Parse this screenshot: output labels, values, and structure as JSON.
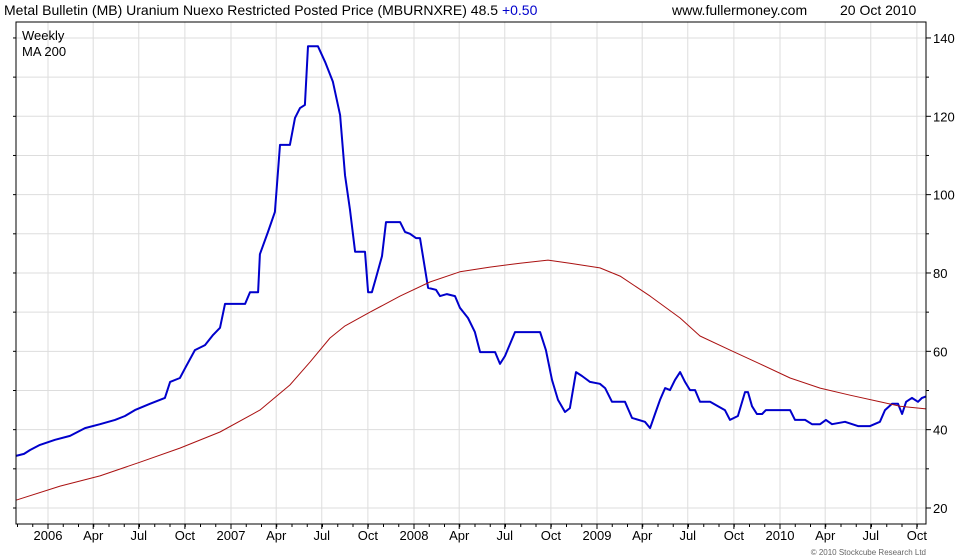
{
  "header": {
    "title": "Metal Bulletin (MB) Uranium Nuexo Restricted Posted Price (MBURNXRE) 48.5",
    "change": "+0.50",
    "site": "www.fullermoney.com",
    "date": "20 Oct 2010"
  },
  "footer": {
    "copyright": "© 2010 Stockcube Research Ltd"
  },
  "colors": {
    "weekly": "#0000cc",
    "ma": "#aa1111",
    "grid": "#dddddd",
    "change": "#0000cc"
  },
  "chart_data": {
    "type": "line",
    "title": "Metal Bulletin (MB) Uranium Nuexo Restricted Posted Price (MBURNXRE)",
    "xlim": [
      2005.825,
      2010.8
    ],
    "ylim": [
      16,
      144
    ],
    "yticks": [
      20,
      40,
      60,
      80,
      100,
      120,
      140
    ],
    "xticks": [
      {
        "t": 2006.0,
        "label": "2006"
      },
      {
        "t": 2006.247,
        "label": "Apr"
      },
      {
        "t": 2006.496,
        "label": "Jul"
      },
      {
        "t": 2006.748,
        "label": "Oct"
      },
      {
        "t": 2007.0,
        "label": "2007"
      },
      {
        "t": 2007.247,
        "label": "Apr"
      },
      {
        "t": 2007.496,
        "label": "Jul"
      },
      {
        "t": 2007.748,
        "label": "Oct"
      },
      {
        "t": 2008.0,
        "label": "2008"
      },
      {
        "t": 2008.247,
        "label": "Apr"
      },
      {
        "t": 2008.496,
        "label": "Jul"
      },
      {
        "t": 2008.748,
        "label": "Oct"
      },
      {
        "t": 2009.0,
        "label": "2009"
      },
      {
        "t": 2009.247,
        "label": "Apr"
      },
      {
        "t": 2009.496,
        "label": "Jul"
      },
      {
        "t": 2009.748,
        "label": "Oct"
      },
      {
        "t": 2010.0,
        "label": "2010"
      },
      {
        "t": 2010.247,
        "label": "Apr"
      },
      {
        "t": 2010.496,
        "label": "Jul"
      },
      {
        "t": 2010.748,
        "label": "Oct"
      }
    ],
    "legend": [
      "Weekly",
      "MA 200"
    ],
    "legend_position": "top-left",
    "grid": true,
    "series": [
      {
        "name": "Weekly",
        "step": true,
        "points": [
          [
            2005.825,
            33.3
          ],
          [
            2005.869,
            33.8
          ],
          [
            2005.902,
            34.8
          ],
          [
            2005.956,
            36.1
          ],
          [
            2006.038,
            37.4
          ],
          [
            2006.12,
            38.4
          ],
          [
            2006.202,
            40.4
          ],
          [
            2006.284,
            41.4
          ],
          [
            2006.366,
            42.5
          ],
          [
            2006.421,
            43.5
          ],
          [
            2006.475,
            45.0
          ],
          [
            2006.557,
            46.6
          ],
          [
            2006.639,
            48.1
          ],
          [
            2006.667,
            52.2
          ],
          [
            2006.721,
            53.2
          ],
          [
            2006.749,
            55.7
          ],
          [
            2006.803,
            60.3
          ],
          [
            2006.858,
            61.6
          ],
          [
            2006.902,
            64.2
          ],
          [
            2006.94,
            66.0
          ],
          [
            2006.967,
            72.1
          ],
          [
            2007.077,
            72.1
          ],
          [
            2007.104,
            75.1
          ],
          [
            2007.148,
            75.1
          ],
          [
            2007.158,
            84.8
          ],
          [
            2007.202,
            90.5
          ],
          [
            2007.24,
            95.6
          ],
          [
            2007.268,
            112.7
          ],
          [
            2007.322,
            112.7
          ],
          [
            2007.35,
            119.6
          ],
          [
            2007.377,
            122.1
          ],
          [
            2007.404,
            122.9
          ],
          [
            2007.421,
            137.9
          ],
          [
            2007.475,
            137.9
          ],
          [
            2007.514,
            133.9
          ],
          [
            2007.557,
            128.8
          ],
          [
            2007.596,
            120.3
          ],
          [
            2007.623,
            105.0
          ],
          [
            2007.65,
            96.1
          ],
          [
            2007.678,
            85.4
          ],
          [
            2007.732,
            85.4
          ],
          [
            2007.749,
            75.1
          ],
          [
            2007.77,
            75.1
          ],
          [
            2007.792,
            78.7
          ],
          [
            2007.825,
            84.3
          ],
          [
            2007.847,
            93.0
          ],
          [
            2007.924,
            93.0
          ],
          [
            2007.951,
            90.5
          ],
          [
            2007.978,
            90.0
          ],
          [
            2008.011,
            88.9
          ],
          [
            2008.033,
            88.9
          ],
          [
            2008.077,
            76.2
          ],
          [
            2008.12,
            75.7
          ],
          [
            2008.142,
            74.1
          ],
          [
            2008.18,
            74.6
          ],
          [
            2008.224,
            74.1
          ],
          [
            2008.251,
            71.1
          ],
          [
            2008.295,
            68.5
          ],
          [
            2008.333,
            64.9
          ],
          [
            2008.361,
            59.8
          ],
          [
            2008.443,
            59.8
          ],
          [
            2008.47,
            56.8
          ],
          [
            2008.497,
            58.8
          ],
          [
            2008.552,
            64.9
          ],
          [
            2008.689,
            64.9
          ],
          [
            2008.721,
            60.3
          ],
          [
            2008.754,
            52.7
          ],
          [
            2008.787,
            47.6
          ],
          [
            2008.825,
            44.5
          ],
          [
            2008.852,
            45.5
          ],
          [
            2008.885,
            54.7
          ],
          [
            2008.918,
            53.7
          ],
          [
            2008.962,
            52.2
          ],
          [
            2009.016,
            51.7
          ],
          [
            2009.044,
            50.6
          ],
          [
            2009.082,
            47.1
          ],
          [
            2009.153,
            47.1
          ],
          [
            2009.191,
            43.0
          ],
          [
            2009.262,
            42.0
          ],
          [
            2009.29,
            40.4
          ],
          [
            2009.317,
            44.0
          ],
          [
            2009.344,
            47.6
          ],
          [
            2009.372,
            50.6
          ],
          [
            2009.399,
            50.1
          ],
          [
            2009.426,
            52.7
          ],
          [
            2009.454,
            54.7
          ],
          [
            2009.481,
            52.2
          ],
          [
            2009.508,
            50.1
          ],
          [
            2009.536,
            50.1
          ],
          [
            2009.563,
            47.1
          ],
          [
            2009.618,
            47.1
          ],
          [
            2009.661,
            46.0
          ],
          [
            2009.699,
            45.0
          ],
          [
            2009.727,
            42.5
          ],
          [
            2009.77,
            43.5
          ],
          [
            2009.809,
            49.6
          ],
          [
            2009.825,
            49.6
          ],
          [
            2009.847,
            46.0
          ],
          [
            2009.874,
            44.0
          ],
          [
            2009.902,
            44.0
          ],
          [
            2009.923,
            45.0
          ],
          [
            2010.055,
            45.0
          ],
          [
            2010.082,
            42.5
          ],
          [
            2010.137,
            42.5
          ],
          [
            2010.175,
            41.4
          ],
          [
            2010.219,
            41.4
          ],
          [
            2010.251,
            42.5
          ],
          [
            2010.284,
            41.4
          ],
          [
            2010.355,
            42.0
          ],
          [
            2010.426,
            40.9
          ],
          [
            2010.492,
            40.9
          ],
          [
            2010.546,
            42.0
          ],
          [
            2010.574,
            45.0
          ],
          [
            2010.612,
            46.6
          ],
          [
            2010.645,
            46.6
          ],
          [
            2010.667,
            44.0
          ],
          [
            2010.689,
            47.1
          ],
          [
            2010.721,
            48.1
          ],
          [
            2010.754,
            47.1
          ],
          [
            2010.776,
            48.1
          ],
          [
            2010.798,
            48.5
          ]
        ]
      },
      {
        "name": "MA 200",
        "step": false,
        "points": [
          [
            2005.825,
            22.0
          ],
          [
            2006.066,
            25.6
          ],
          [
            2006.284,
            28.2
          ],
          [
            2006.503,
            31.7
          ],
          [
            2006.721,
            35.3
          ],
          [
            2006.94,
            39.4
          ],
          [
            2007.158,
            45.0
          ],
          [
            2007.322,
            51.4
          ],
          [
            2007.432,
            57.3
          ],
          [
            2007.541,
            63.4
          ],
          [
            2007.623,
            66.5
          ],
          [
            2007.76,
            70.0
          ],
          [
            2007.924,
            74.1
          ],
          [
            2008.087,
            77.7
          ],
          [
            2008.251,
            80.3
          ],
          [
            2008.415,
            81.5
          ],
          [
            2008.579,
            82.5
          ],
          [
            2008.732,
            83.3
          ],
          [
            2008.852,
            82.5
          ],
          [
            2009.016,
            81.3
          ],
          [
            2009.126,
            79.2
          ],
          [
            2009.29,
            74.1
          ],
          [
            2009.454,
            68.5
          ],
          [
            2009.563,
            63.9
          ],
          [
            2009.727,
            60.3
          ],
          [
            2009.891,
            56.8
          ],
          [
            2010.055,
            53.2
          ],
          [
            2010.219,
            50.6
          ],
          [
            2010.383,
            48.8
          ],
          [
            2010.546,
            47.1
          ],
          [
            2010.656,
            46.0
          ],
          [
            2010.798,
            45.3
          ]
        ]
      }
    ]
  }
}
